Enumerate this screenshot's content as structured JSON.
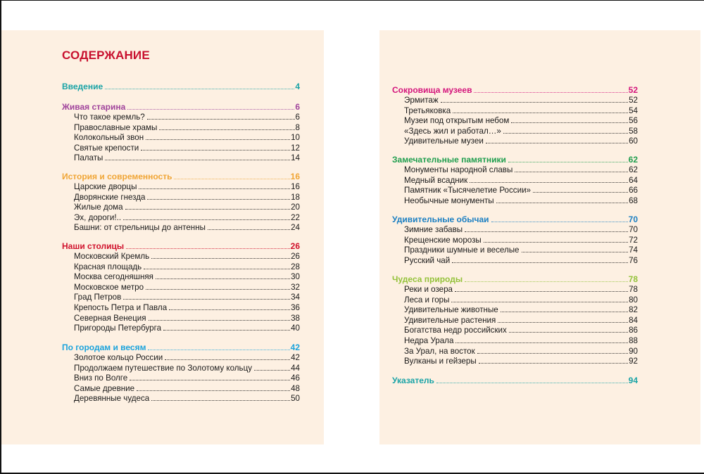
{
  "title": "СОДЕРЖАНИЕ",
  "colors": {
    "title": "#c8102e"
  },
  "left": [
    {
      "heading": "Введение",
      "page": "4",
      "color": "#19a3a6",
      "items": []
    },
    {
      "heading": "Живая старина",
      "page": "6",
      "color": "#a0449c",
      "items": [
        {
          "label": "Что такое кремль?",
          "page": "6"
        },
        {
          "label": "Православные храмы",
          "page": "8"
        },
        {
          "label": "Колокольный звон",
          "page": "10"
        },
        {
          "label": "Святые крепости",
          "page": "12"
        },
        {
          "label": "Палаты",
          "page": "14"
        }
      ]
    },
    {
      "heading": "История и современность",
      "page": "16",
      "color": "#f0a535",
      "items": [
        {
          "label": "Царские дворцы",
          "page": "16"
        },
        {
          "label": "Дворянские гнезда",
          "page": "18"
        },
        {
          "label": "Жилые дома",
          "page": "20"
        },
        {
          "label": "Эх, дороги!..",
          "page": "22"
        },
        {
          "label": "Башни: от стрельницы до антенны",
          "page": "24"
        }
      ]
    },
    {
      "heading": "Наши столицы",
      "page": "26",
      "color": "#d0122c",
      "items": [
        {
          "label": "Московский Кремль",
          "page": "26"
        },
        {
          "label": "Красная площадь",
          "page": "28"
        },
        {
          "label": "Москва сегодняшняя",
          "page": "30"
        },
        {
          "label": "Московское метро",
          "page": "32"
        },
        {
          "label": "Град Петров",
          "page": "34"
        },
        {
          "label": "Крепость Петра и Павла",
          "page": "36"
        },
        {
          "label": "Северная Венеция",
          "page": "38"
        },
        {
          "label": "Пригороды Петербурга",
          "page": "40"
        }
      ]
    },
    {
      "heading": "По городам и весям",
      "page": "42",
      "color": "#1ba3dc",
      "items": [
        {
          "label": "Золотое кольцо России",
          "page": "42"
        },
        {
          "label": "Продолжаем путешествие по Золотому кольцу",
          "page": "44"
        },
        {
          "label": "Вниз по Волге",
          "page": "46"
        },
        {
          "label": "Самые древние",
          "page": "48"
        },
        {
          "label": "Деревянные чудеса",
          "page": "50"
        }
      ]
    }
  ],
  "right": [
    {
      "heading": "Сокровища музеев",
      "page": "52",
      "color": "#d4157c",
      "items": [
        {
          "label": "Эрмитаж",
          "page": "52"
        },
        {
          "label": "Третьяковка",
          "page": "54"
        },
        {
          "label": "Музеи под открытым небом",
          "page": "56"
        },
        {
          "label": "«Здесь жил и работал…»",
          "page": "58"
        },
        {
          "label": "Удивительные музеи",
          "page": "60"
        }
      ]
    },
    {
      "heading": "Замечательные памятники",
      "page": "62",
      "color": "#1f9e4e",
      "items": [
        {
          "label": "Монументы народной славы",
          "page": "62"
        },
        {
          "label": "Медный всадник",
          "page": "64"
        },
        {
          "label": "Памятник «Тысячелетие России»",
          "page": "66"
        },
        {
          "label": "Необычные монументы",
          "page": "68"
        }
      ]
    },
    {
      "heading": "Удивительные обычаи",
      "page": "70",
      "color": "#1b7fc2",
      "items": [
        {
          "label": "Зимние забавы",
          "page": "70"
        },
        {
          "label": "Крещенские морозы",
          "page": "72"
        },
        {
          "label": "Праздники шумные и веселые",
          "page": "74"
        },
        {
          "label": "Русский чай",
          "page": "76"
        }
      ]
    },
    {
      "heading": "Чудеса природы",
      "page": "78",
      "color": "#94c23a",
      "items": [
        {
          "label": "Реки и озера",
          "page": "78"
        },
        {
          "label": "Леса и горы",
          "page": "80"
        },
        {
          "label": "Удивительные животные",
          "page": "82"
        },
        {
          "label": "Удивительные растения",
          "page": "84"
        },
        {
          "label": "Богатства недр российских",
          "page": "86"
        },
        {
          "label": "Недра Урала",
          "page": "88"
        },
        {
          "label": "За Урал, на восток",
          "page": "90"
        },
        {
          "label": "Вулканы и гейзеры",
          "page": "92"
        }
      ]
    },
    {
      "heading": "Указатель",
      "page": "94",
      "color": "#19a3a6",
      "items": []
    }
  ]
}
